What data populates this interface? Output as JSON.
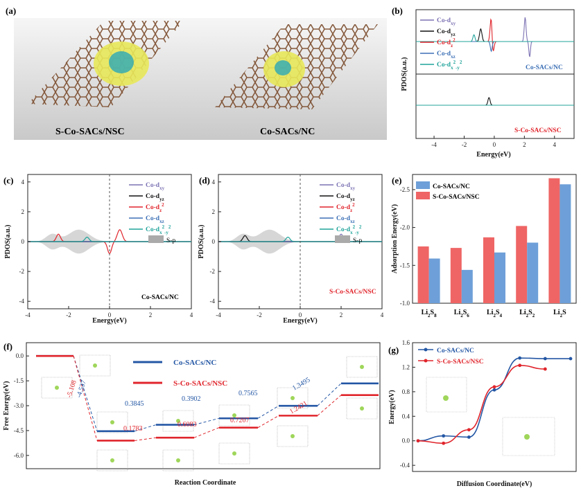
{
  "panel_a": {
    "label": "(a)",
    "captions": [
      "S-Co-SACs/NSC",
      "Co-SACs/NC"
    ]
  },
  "panel_b": {
    "label": "(b)",
    "xlabel": "Energy(eV)",
    "ylabel": "PDOS(a.u.)",
    "xticks": [
      "-4",
      "-2",
      "0",
      "2",
      "4"
    ],
    "legend": [
      {
        "base": "Co-d",
        "sub": "xy",
        "sup": "",
        "color": "#7b72b3"
      },
      {
        "base": "Co-d",
        "sub": "yz",
        "sup": "",
        "color": "#111111"
      },
      {
        "base": "Co-d",
        "sub": "z",
        "sup": "2",
        "color": "#e0242b"
      },
      {
        "base": "Co-d",
        "sub": "xz",
        "sup": "",
        "color": "#3b6fb5"
      },
      {
        "base": "Co-d",
        "sub": "x",
        "sup": "2",
        "sub2": "-y",
        "sup2": "2",
        "color": "#1fa39a"
      }
    ],
    "tags": [
      "Co-SACs/NC",
      "S-Co-SACs/NSC"
    ]
  },
  "panel_c": {
    "label": "(c)",
    "xlabel": "Energy(eV)",
    "ylabel": "PDOS(a.u.)",
    "xticks": [
      "-4",
      "-2",
      "0",
      "2",
      "4"
    ],
    "yticks": [
      "4",
      "2",
      "0",
      "-2",
      "-4"
    ],
    "sp_label": "S-p",
    "tag": "Co-SACs/NC"
  },
  "panel_d": {
    "label": "(d)",
    "xlabel": "Energy(eV)",
    "ylabel": "PDOS(a.u.)",
    "xticks": [
      "-4",
      "-2",
      "0",
      "2",
      "4"
    ],
    "yticks": [
      "4",
      "2",
      "0",
      "-2",
      "-4"
    ],
    "sp_label": "S-p",
    "tag": "S-Co-SACs/NSC"
  },
  "panel_e": {
    "label": "(e)",
    "ylabel": "Adsorption Energy(eV)",
    "legend": [
      "Co-SACs/NC",
      "S-Co-SACs/NSC"
    ],
    "colors": [
      "#6e9fd8",
      "#ef6565"
    ]
  },
  "panel_f": {
    "label": "(f)",
    "xlabel": "Reaction Coordinate",
    "ylabel": "Free Energy(eV)",
    "legend": [
      "Co-SACs/NC",
      "S-Co-SACs/NSC"
    ],
    "colors": [
      "#2356a4",
      "#e0242b"
    ]
  },
  "panel_g": {
    "label": "(g)",
    "xlabel": "Diffusion Coordinate(eV)",
    "ylabel": "Energy(eV)",
    "legend": [
      "Co-SACs/NC",
      "S-Co-SACs/NSC"
    ],
    "colors": [
      "#2356a4",
      "#e0242b"
    ]
  },
  "chart_data": [
    {
      "type": "bar",
      "panel": "e",
      "categories": [
        "Li2S8",
        "Li2S6",
        "Li2S4",
        "Li2S2",
        "Li2S"
      ],
      "category_labels": [
        {
          "base": "Li",
          "s1": "2",
          "mid": "S",
          "s2": "8"
        },
        {
          "base": "Li",
          "s1": "2",
          "mid": "S",
          "s2": "6"
        },
        {
          "base": "Li",
          "s1": "2",
          "mid": "S",
          "s2": "4"
        },
        {
          "base": "Li",
          "s1": "2",
          "mid": "S",
          "s2": "2"
        },
        {
          "base": "Li",
          "s1": "2",
          "mid": "S",
          "s2": ""
        }
      ],
      "series": [
        {
          "name": "Co-SACs/NC",
          "values": [
            -1.59,
            -1.44,
            -1.67,
            -1.8,
            -2.57
          ]
        },
        {
          "name": "S-Co-SACs/NSC",
          "values": [
            -1.75,
            -1.73,
            -1.87,
            -2.02,
            -2.65
          ]
        }
      ],
      "ylabel": "Adsorption Energy(eV)",
      "ylim": [
        -1.0,
        -2.7
      ],
      "yticks": [
        "-2.5",
        "-2.0",
        "-1.5",
        "-1.0"
      ]
    },
    {
      "type": "line",
      "panel": "f",
      "xlabel": "Reaction Coordinate",
      "ylabel": "Free Energy(eV)",
      "ylim": [
        -6.8,
        0.8
      ],
      "yticks": [
        "0.0",
        "-1.5",
        "-3.0",
        "-4.5",
        "-6.0"
      ],
      "series": [
        {
          "name": "Co-SACs/NC",
          "values": [
            0.0,
            -4.537,
            -4.1525,
            -3.7623,
            -3.0058,
            -1.6563
          ]
        },
        {
          "name": "S-Co-SACs/NSC",
          "values": [
            0.0,
            -5.108,
            -4.9297,
            -4.3214,
            -3.6007,
            -2.3586
          ]
        }
      ],
      "annotations_blue": [
        "-4.537",
        "0.3845",
        "0.3902",
        "0.7565",
        "1.3495"
      ],
      "annotations_red": [
        "-5.108",
        "0.1783",
        "0.6083",
        "0.7207",
        "1.2421"
      ]
    },
    {
      "type": "line",
      "panel": "g",
      "xlabel": "Diffusion Coordinate(eV)",
      "ylabel": "Energy(eV)",
      "ylim": [
        -0.5,
        1.6
      ],
      "yticks": [
        "1.6",
        "1.2",
        "0.8",
        "0.4",
        "0.0",
        "-0.4"
      ],
      "series": [
        {
          "name": "Co-SACs/NC",
          "x": [
            0,
            1,
            2,
            3,
            4,
            5,
            6
          ],
          "values": [
            0.0,
            0.08,
            0.06,
            0.83,
            1.35,
            1.34,
            1.34
          ]
        },
        {
          "name": "S-Co-SACs/NSC",
          "x": [
            0,
            1,
            2,
            3,
            4,
            5
          ],
          "values": [
            0.0,
            -0.04,
            0.18,
            0.88,
            1.23,
            1.17
          ]
        }
      ]
    },
    {
      "type": "line",
      "panel": "c",
      "note": "projected density of states",
      "xlim": [
        -4,
        4
      ],
      "ylim": [
        -4.5,
        4.5
      ]
    }
  ]
}
